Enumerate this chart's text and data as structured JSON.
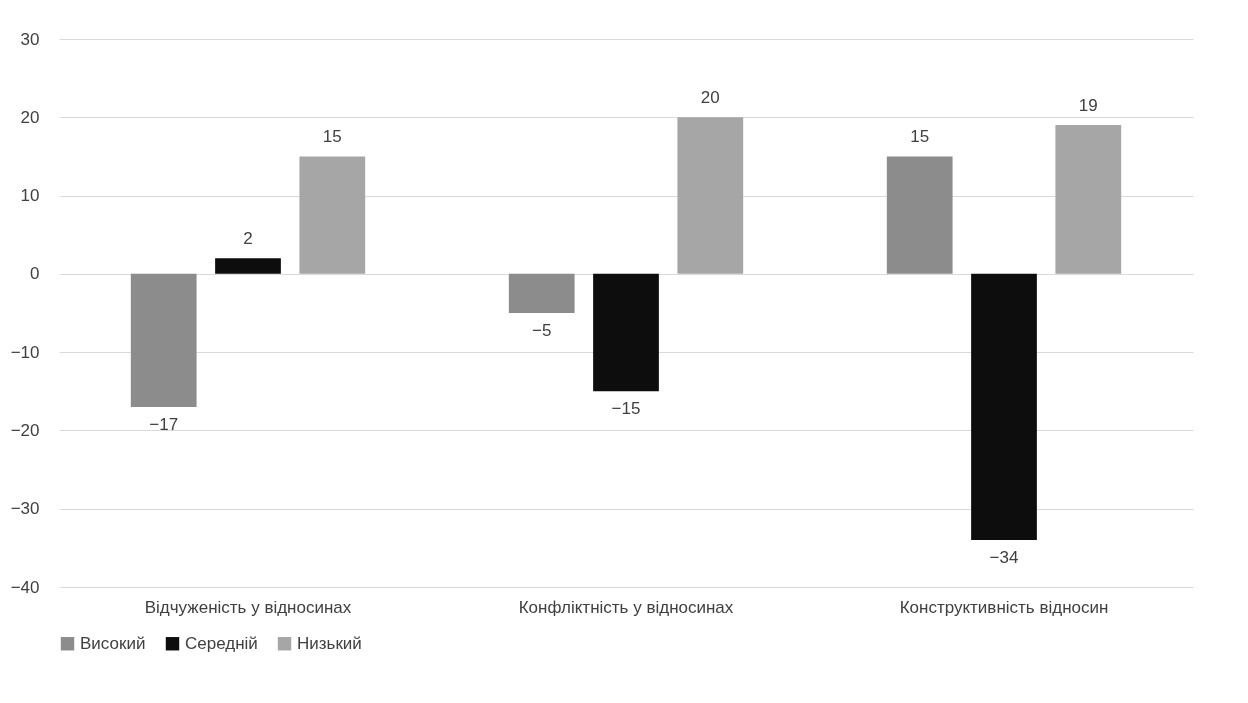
{
  "chart_data": {
    "type": "bar",
    "categories": [
      "Відчуженість у відносинах",
      "Конфліктність у відносинах",
      "Конструктивність відносин"
    ],
    "series": [
      {
        "name": "Високий",
        "color": "#8c8c8c",
        "values": [
          -17,
          -5,
          15
        ]
      },
      {
        "name": "Середній",
        "color": "#0d0d0d",
        "values": [
          2,
          -15,
          -34
        ]
      },
      {
        "name": "Низький",
        "color": "#a6a6a6",
        "values": [
          15,
          20,
          19
        ]
      }
    ],
    "ylim": [
      -40,
      30
    ],
    "yticks": [
      -40,
      -30,
      -20,
      -10,
      0,
      10,
      20,
      30
    ],
    "grid": "y",
    "legend": "bottom",
    "data_labels": true
  }
}
